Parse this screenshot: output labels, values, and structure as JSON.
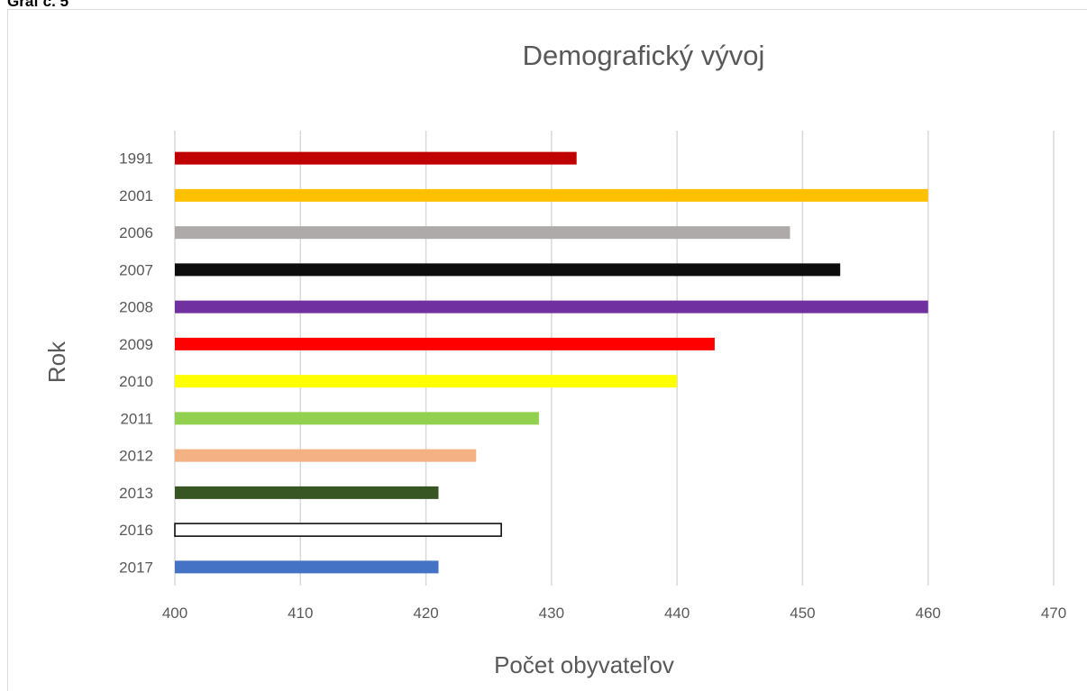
{
  "caption": "Graf č. 5",
  "chart_data": {
    "type": "bar",
    "orientation": "horizontal",
    "title": "Demografický vývoj",
    "xlabel": "Počet obyvateľov",
    "ylabel": "Rok",
    "xlim": [
      400,
      470
    ],
    "x_ticks": [
      "400",
      "410",
      "420",
      "430",
      "440",
      "450",
      "460",
      "470"
    ],
    "grid": true,
    "legend": "none",
    "categories": [
      "1991",
      "2001",
      "2006",
      "2007",
      "2008",
      "2009",
      "2010",
      "2011",
      "2012",
      "2013",
      "2016",
      "2017"
    ],
    "values": [
      432,
      460,
      449,
      453,
      460,
      443,
      440,
      429,
      424,
      421,
      426,
      421
    ],
    "colors": [
      "#c00000",
      "#ffc000",
      "#aeaaaa",
      "#0d0d0d",
      "#7030a0",
      "#ff0000",
      "#ffff00",
      "#92d050",
      "#f4b183",
      "#375623",
      "#ffffff",
      "#4472c4"
    ],
    "outlined_categories": [
      "2016"
    ]
  }
}
